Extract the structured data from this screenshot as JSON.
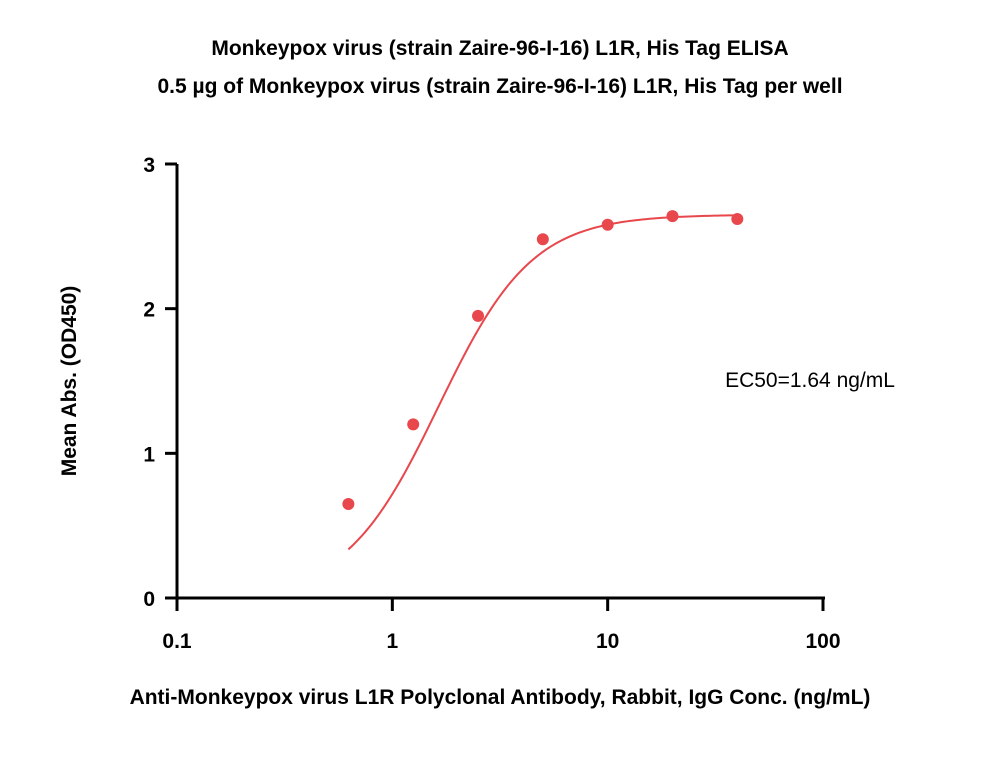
{
  "chart_data": {
    "type": "scatter",
    "title": "Monkeypox virus (strain Zaire-96-I-16) L1R, His Tag ELISA",
    "subtitle": "0.5 µg of Monkeypox virus (strain Zaire-96-I-16) L1R, His Tag per well",
    "xlabel": "Anti-Monkeypox virus L1R Polyclonal Antibody, Rabbit, IgG Conc. (ng/mL)",
    "ylabel": "Mean Abs. (OD450)",
    "x_scale": "log",
    "xlim": [
      0.1,
      100
    ],
    "ylim": [
      0,
      3
    ],
    "x_ticks": [
      0.1,
      1,
      10,
      100
    ],
    "x_tick_labels": [
      "0.1",
      "1",
      "10",
      "100"
    ],
    "y_ticks": [
      0,
      1,
      2,
      3
    ],
    "y_tick_labels": [
      "0",
      "1",
      "2",
      "3"
    ],
    "grid": false,
    "series": [
      {
        "x": [
          0.625,
          1.25,
          2.5,
          5,
          10,
          20,
          40
        ],
        "y": [
          0.65,
          1.2,
          1.95,
          2.48,
          2.58,
          2.64,
          2.62
        ],
        "color": "#e8474c",
        "fit": "4PL",
        "fit_params": {
          "bottom": 0.0,
          "top": 2.65,
          "ec50": 1.64,
          "hill": 2.0
        }
      }
    ],
    "annotations": [
      {
        "text": "EC50=1.64 ng/mL"
      }
    ]
  }
}
